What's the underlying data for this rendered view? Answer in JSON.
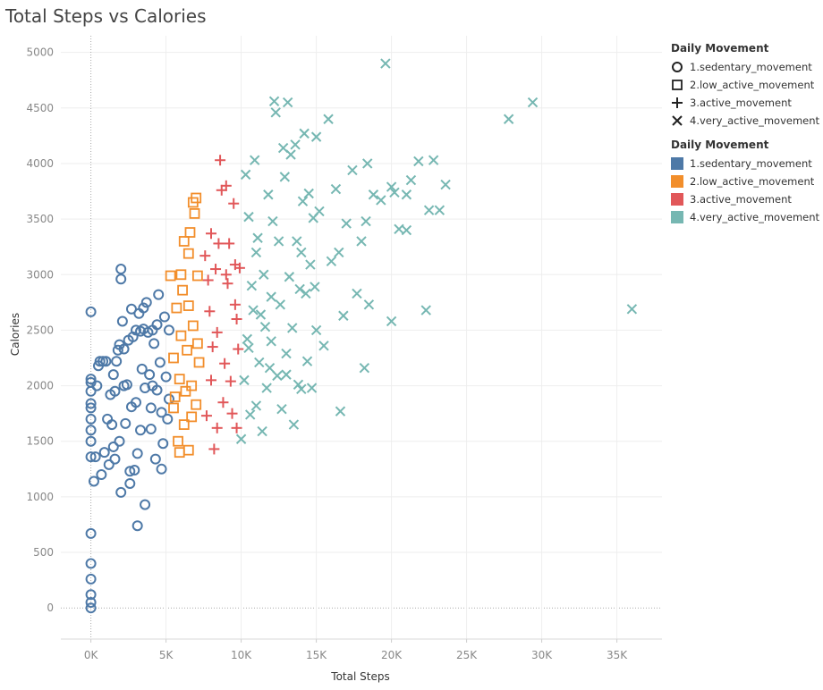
{
  "title": "Total Steps vs Calories",
  "legend_shapes": {
    "title": "Daily Movement",
    "items": [
      {
        "label": "1.sedentary_movement",
        "shape": "circle"
      },
      {
        "label": "2.low_active_movement",
        "shape": "square"
      },
      {
        "label": "3.active_movement",
        "shape": "plus"
      },
      {
        "label": "4.very_active_movement",
        "shape": "cross"
      }
    ]
  },
  "legend_colors": {
    "title": "Daily Movement",
    "items": [
      {
        "label": "1.sedentary_movement",
        "color": "#4e79a7"
      },
      {
        "label": "2.low_active_movement",
        "color": "#f28e2b"
      },
      {
        "label": "3.active_movement",
        "color": "#e15759"
      },
      {
        "label": "4.very_active_movement",
        "color": "#76b7b2"
      }
    ]
  },
  "chart_data": {
    "type": "scatter",
    "title": "Total Steps vs Calories",
    "xlabel": "Total Steps",
    "ylabel": "Calories",
    "xlim": [
      -2000,
      38000
    ],
    "ylim": [
      -280,
      5150
    ],
    "x_ticks": [
      0,
      5000,
      10000,
      15000,
      20000,
      25000,
      30000,
      35000
    ],
    "x_tick_labels": [
      "0K",
      "5K",
      "10K",
      "15K",
      "20K",
      "25K",
      "30K",
      "35K"
    ],
    "y_ticks": [
      0,
      500,
      1000,
      1500,
      2000,
      2500,
      3000,
      3500,
      4000,
      4500,
      5000
    ],
    "y_tick_labels": [
      "0",
      "500",
      "1000",
      "1500",
      "2000",
      "2500",
      "3000",
      "3500",
      "4000",
      "4500",
      "5000"
    ],
    "grid": true,
    "legend_position": "right",
    "series": [
      {
        "name": "1.sedentary_movement",
        "shape": "circle",
        "color": "#4e79a7",
        "points": [
          [
            0,
            2665
          ],
          [
            0,
            670
          ],
          [
            0,
            400
          ],
          [
            0,
            260
          ],
          [
            0,
            120
          ],
          [
            0,
            50
          ],
          [
            0,
            0
          ],
          [
            0,
            1360
          ],
          [
            0,
            1500
          ],
          [
            0,
            1600
          ],
          [
            0,
            1700
          ],
          [
            0,
            1800
          ],
          [
            0,
            1840
          ],
          [
            0,
            1950
          ],
          [
            0,
            2030
          ],
          [
            0,
            2060
          ],
          [
            200,
            1140
          ],
          [
            300,
            1360
          ],
          [
            400,
            2000
          ],
          [
            500,
            2180
          ],
          [
            600,
            2220
          ],
          [
            800,
            2220
          ],
          [
            700,
            1200
          ],
          [
            900,
            1400
          ],
          [
            1000,
            2220
          ],
          [
            1100,
            1700
          ],
          [
            1200,
            1290
          ],
          [
            1300,
            1920
          ],
          [
            1400,
            1650
          ],
          [
            1500,
            1450
          ],
          [
            1600,
            1950
          ],
          [
            1600,
            1340
          ],
          [
            1700,
            2220
          ],
          [
            1800,
            2320
          ],
          [
            1900,
            2370
          ],
          [
            1900,
            1500
          ],
          [
            2000,
            3050
          ],
          [
            2000,
            2960
          ],
          [
            2000,
            1040
          ],
          [
            2100,
            2580
          ],
          [
            2200,
            2330
          ],
          [
            2300,
            1660
          ],
          [
            2400,
            2010
          ],
          [
            2500,
            2410
          ],
          [
            2600,
            1230
          ],
          [
            2600,
            1120
          ],
          [
            2700,
            2690
          ],
          [
            2700,
            1810
          ],
          [
            2800,
            2440
          ],
          [
            2900,
            1240
          ],
          [
            3000,
            2500
          ],
          [
            3000,
            1850
          ],
          [
            3100,
            740
          ],
          [
            3100,
            1390
          ],
          [
            3200,
            2650
          ],
          [
            3300,
            2490
          ],
          [
            3400,
            2150
          ],
          [
            3500,
            2510
          ],
          [
            3600,
            1980
          ],
          [
            3600,
            930
          ],
          [
            3700,
            2750
          ],
          [
            3800,
            2480
          ],
          [
            3900,
            2100
          ],
          [
            4000,
            1800
          ],
          [
            4000,
            1610
          ],
          [
            4100,
            2500
          ],
          [
            4200,
            2380
          ],
          [
            4300,
            1340
          ],
          [
            4400,
            1960
          ],
          [
            4500,
            2820
          ],
          [
            4600,
            2210
          ],
          [
            4700,
            1760
          ],
          [
            4700,
            1250
          ],
          [
            4800,
            1480
          ],
          [
            4900,
            2620
          ],
          [
            5000,
            2080
          ],
          [
            5100,
            1700
          ],
          [
            5200,
            2500
          ],
          [
            5200,
            1880
          ],
          [
            3500,
            2700
          ],
          [
            1500,
            2100
          ],
          [
            2200,
            2000
          ],
          [
            4100,
            2000
          ],
          [
            3300,
            1600
          ],
          [
            4400,
            2550
          ]
        ]
      },
      {
        "name": "2.low_active_movement",
        "shape": "square",
        "color": "#f28e2b",
        "points": [
          [
            5300,
            2990
          ],
          [
            5500,
            2250
          ],
          [
            5600,
            1900
          ],
          [
            5700,
            2700
          ],
          [
            5800,
            1500
          ],
          [
            5900,
            1400
          ],
          [
            6000,
            3000
          ],
          [
            6100,
            2860
          ],
          [
            6200,
            1650
          ],
          [
            6300,
            1950
          ],
          [
            6400,
            2320
          ],
          [
            6500,
            3190
          ],
          [
            6600,
            3380
          ],
          [
            6700,
            2000
          ],
          [
            6800,
            3650
          ],
          [
            6900,
            3550
          ],
          [
            7000,
            3690
          ],
          [
            7100,
            2990
          ],
          [
            7200,
            2210
          ],
          [
            6000,
            2450
          ],
          [
            6500,
            2720
          ],
          [
            6700,
            1720
          ],
          [
            7000,
            1830
          ],
          [
            5500,
            1800
          ],
          [
            5900,
            2060
          ],
          [
            6200,
            3300
          ],
          [
            6500,
            1420
          ],
          [
            6800,
            2540
          ],
          [
            7100,
            2380
          ]
        ]
      },
      {
        "name": "3.active_movement",
        "shape": "plus",
        "color": "#e15759",
        "points": [
          [
            7600,
            3170
          ],
          [
            7700,
            1730
          ],
          [
            7800,
            2950
          ],
          [
            7900,
            2670
          ],
          [
            8000,
            3370
          ],
          [
            8100,
            2350
          ],
          [
            8200,
            1430
          ],
          [
            8300,
            3050
          ],
          [
            8400,
            2480
          ],
          [
            8500,
            3280
          ],
          [
            8600,
            4030
          ],
          [
            8700,
            3760
          ],
          [
            8800,
            1850
          ],
          [
            8900,
            2200
          ],
          [
            9000,
            3800
          ],
          [
            9100,
            2920
          ],
          [
            9200,
            3280
          ],
          [
            9300,
            2040
          ],
          [
            9400,
            1750
          ],
          [
            9500,
            3640
          ],
          [
            9600,
            2730
          ],
          [
            9700,
            1620
          ],
          [
            9900,
            3060
          ],
          [
            9800,
            2330
          ],
          [
            9700,
            2600
          ],
          [
            9000,
            3000
          ],
          [
            9600,
            3090
          ],
          [
            8000,
            2050
          ],
          [
            8400,
            1620
          ]
        ]
      },
      {
        "name": "4.very_active_movement",
        "shape": "cross",
        "color": "#76b7b2",
        "points": [
          [
            10000,
            1520
          ],
          [
            10200,
            2050
          ],
          [
            10300,
            3900
          ],
          [
            10400,
            2420
          ],
          [
            10500,
            3520
          ],
          [
            10600,
            1740
          ],
          [
            10700,
            2900
          ],
          [
            10800,
            2680
          ],
          [
            10900,
            4030
          ],
          [
            11000,
            1820
          ],
          [
            11100,
            3330
          ],
          [
            11200,
            2210
          ],
          [
            11300,
            2640
          ],
          [
            11400,
            1590
          ],
          [
            11500,
            3000
          ],
          [
            11600,
            2530
          ],
          [
            11700,
            1980
          ],
          [
            11800,
            3720
          ],
          [
            11900,
            2160
          ],
          [
            12000,
            2800
          ],
          [
            12100,
            3480
          ],
          [
            12200,
            4560
          ],
          [
            12300,
            4460
          ],
          [
            12400,
            2090
          ],
          [
            12500,
            3300
          ],
          [
            12600,
            2730
          ],
          [
            12700,
            1790
          ],
          [
            12800,
            4140
          ],
          [
            12900,
            3880
          ],
          [
            13000,
            2290
          ],
          [
            13100,
            4550
          ],
          [
            13200,
            2980
          ],
          [
            13300,
            4080
          ],
          [
            13400,
            2520
          ],
          [
            13500,
            1650
          ],
          [
            13600,
            4170
          ],
          [
            13700,
            3300
          ],
          [
            13800,
            2010
          ],
          [
            13900,
            2870
          ],
          [
            14000,
            1970
          ],
          [
            14100,
            3660
          ],
          [
            14200,
            4270
          ],
          [
            14300,
            2830
          ],
          [
            14400,
            2220
          ],
          [
            14500,
            3730
          ],
          [
            14600,
            3090
          ],
          [
            14700,
            1980
          ],
          [
            14800,
            3510
          ],
          [
            14900,
            2890
          ],
          [
            15000,
            4240
          ],
          [
            15200,
            3570
          ],
          [
            15500,
            2360
          ],
          [
            15800,
            4400
          ],
          [
            16000,
            3120
          ],
          [
            16300,
            3770
          ],
          [
            16600,
            1770
          ],
          [
            16800,
            2630
          ],
          [
            17000,
            3460
          ],
          [
            17400,
            3940
          ],
          [
            17700,
            2830
          ],
          [
            18000,
            3300
          ],
          [
            18200,
            2160
          ],
          [
            18300,
            3480
          ],
          [
            18500,
            2730
          ],
          [
            18800,
            3720
          ],
          [
            19300,
            3670
          ],
          [
            19600,
            4900
          ],
          [
            20000,
            2580
          ],
          [
            20200,
            3740
          ],
          [
            20500,
            3410
          ],
          [
            21000,
            3720
          ],
          [
            21300,
            3850
          ],
          [
            21800,
            4020
          ],
          [
            22300,
            2680
          ],
          [
            22800,
            4030
          ],
          [
            23200,
            3580
          ],
          [
            23600,
            3810
          ],
          [
            27800,
            4400
          ],
          [
            29400,
            4550
          ],
          [
            36000,
            2690
          ],
          [
            10500,
            2340
          ],
          [
            11000,
            3200
          ],
          [
            12000,
            2400
          ],
          [
            13000,
            2100
          ],
          [
            14000,
            3200
          ],
          [
            15000,
            2500
          ],
          [
            16500,
            3200
          ],
          [
            18400,
            4000
          ],
          [
            20000,
            3790
          ],
          [
            21000,
            3400
          ],
          [
            22500,
            3580
          ]
        ]
      }
    ]
  }
}
